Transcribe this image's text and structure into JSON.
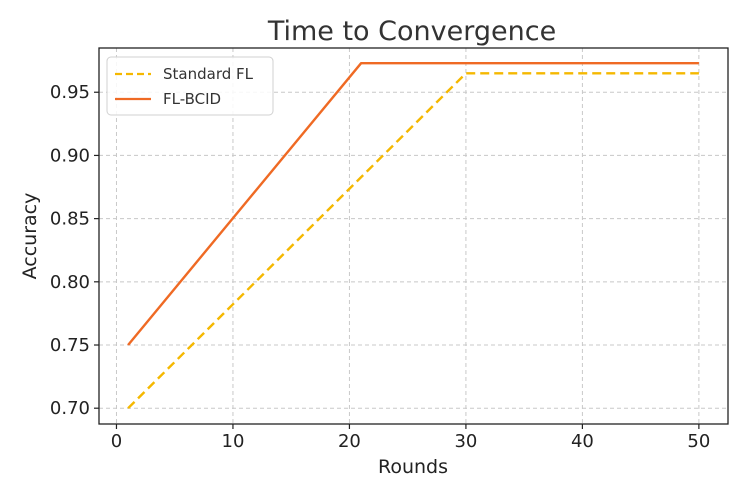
{
  "chart_data": {
    "type": "line",
    "title": "Time to Convergence",
    "xlabel": "Rounds",
    "ylabel": "Accuracy",
    "xlim": [
      -1.5,
      52.5
    ],
    "ylim": [
      0.6875,
      0.985
    ],
    "xticks": [
      0,
      10,
      20,
      30,
      40,
      50
    ],
    "yticks": [
      0.7,
      0.75,
      0.8,
      0.85,
      0.9,
      0.95
    ],
    "xtick_labels": [
      "0",
      "10",
      "20",
      "30",
      "40",
      "50"
    ],
    "ytick_labels": [
      "0.70",
      "0.75",
      "0.80",
      "0.85",
      "0.90",
      "0.95"
    ],
    "grid": true,
    "legend_position": "top-left",
    "series": [
      {
        "name": "Standard FL",
        "color": "#f5b800",
        "style": "dashed",
        "x": [
          1,
          30,
          50
        ],
        "y": [
          0.7,
          0.965,
          0.965
        ]
      },
      {
        "name": "FL-BCID",
        "color": "#ef6a24",
        "style": "solid",
        "x": [
          1,
          21,
          50
        ],
        "y": [
          0.75,
          0.973,
          0.973
        ]
      }
    ]
  }
}
